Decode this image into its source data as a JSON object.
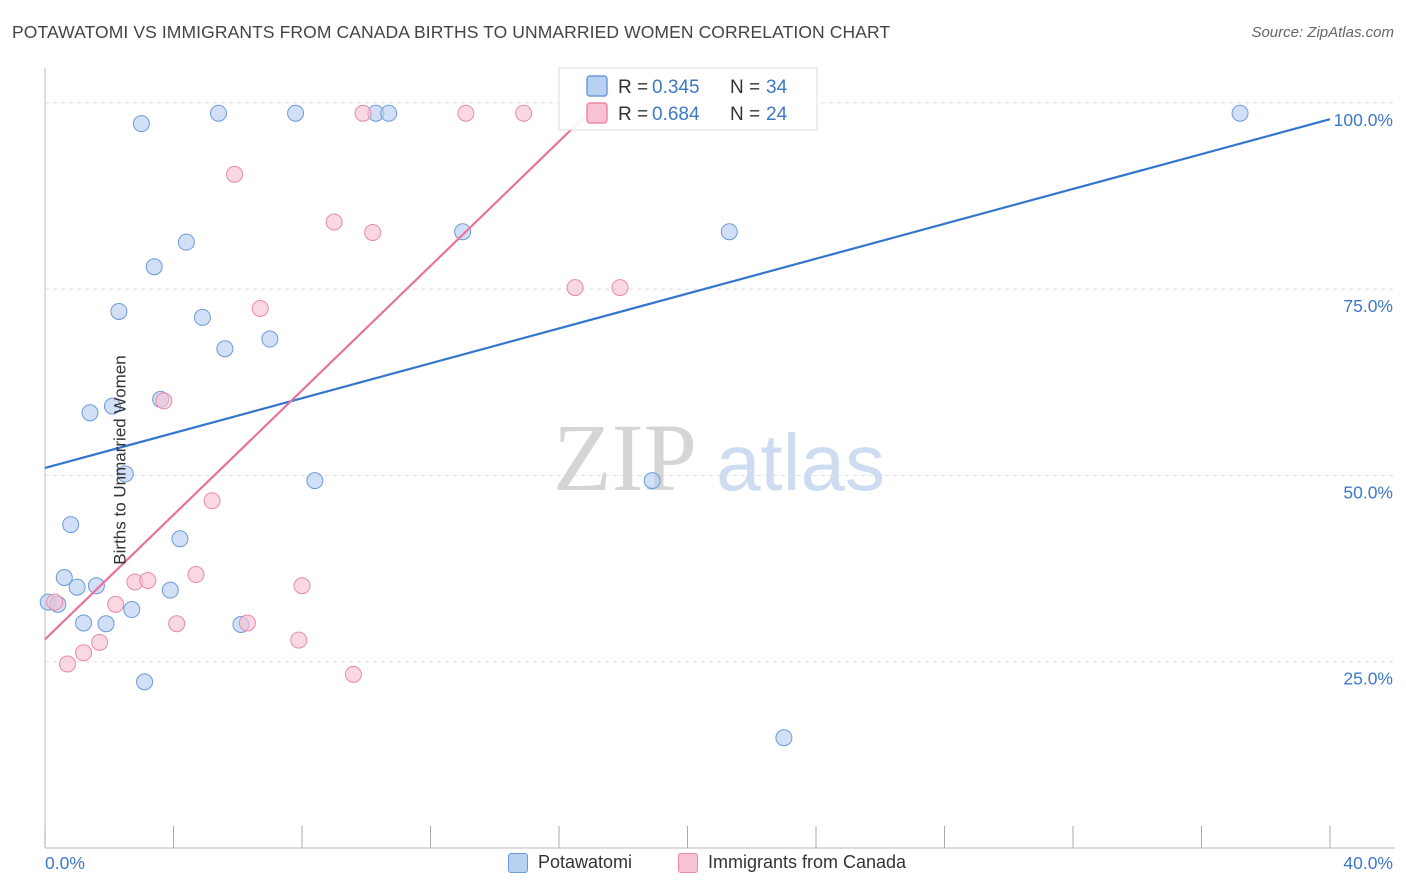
{
  "title": "POTAWATOMI VS IMMIGRANTS FROM CANADA BIRTHS TO UNMARRIED WOMEN CORRELATION CHART",
  "source": "Source: ZipAtlas.com",
  "watermark": {
    "zip": "ZIP",
    "atlas": "atlas"
  },
  "colors": {
    "blue_fill": "#b8d0f2",
    "blue_stroke": "#6c9ad8",
    "blue_line": "#3376cc",
    "pink_fill": "#f7c3d3",
    "pink_stroke": "#e98aa8",
    "pink_line": "#e8739a",
    "axis_text": "#3d78c8",
    "grid": "#dddddd"
  },
  "legend": {
    "rows": [
      {
        "r_label": "R =",
        "r_value": "0.345",
        "n_label": "N =",
        "n_value": "34"
      },
      {
        "r_label": "R =",
        "r_value": "0.684",
        "n_label": "N =",
        "n_value": "24"
      }
    ]
  },
  "chart_data": {
    "type": "scatter",
    "title": "POTAWATOMI VS IMMIGRANTS FROM CANADA BIRTHS TO UNMARRIED WOMEN CORRELATION CHART",
    "xlabel": "",
    "ylabel": "Births to Unmarried Women",
    "xlim": [
      0,
      40
    ],
    "ylim": [
      0,
      104
    ],
    "x_tick_labels": [
      "0.0%",
      "40.0%"
    ],
    "y_ticks": [
      25,
      50,
      75,
      100
    ],
    "y_tick_labels": [
      "25.0%",
      "50.0%",
      "75.0%",
      "100.0%"
    ],
    "grid": true,
    "legend_position": "top-center",
    "series": [
      {
        "name": "Potawatomi",
        "r": 0.345,
        "n": 34,
        "trend": {
          "x": [
            0,
            40
          ],
          "y": [
            51.0,
            97.8
          ]
        },
        "points": [
          {
            "x": 0.1,
            "y": 33.0
          },
          {
            "x": 0.4,
            "y": 32.7
          },
          {
            "x": 0.6,
            "y": 36.3
          },
          {
            "x": 0.8,
            "y": 43.4
          },
          {
            "x": 1.0,
            "y": 35.0
          },
          {
            "x": 1.2,
            "y": 30.2
          },
          {
            "x": 1.4,
            "y": 58.4
          },
          {
            "x": 1.6,
            "y": 35.2
          },
          {
            "x": 1.9,
            "y": 30.1
          },
          {
            "x": 2.1,
            "y": 59.3
          },
          {
            "x": 2.3,
            "y": 72.0
          },
          {
            "x": 2.5,
            "y": 50.2
          },
          {
            "x": 2.7,
            "y": 32.0
          },
          {
            "x": 3.0,
            "y": 97.2
          },
          {
            "x": 3.1,
            "y": 22.3
          },
          {
            "x": 3.4,
            "y": 78.0
          },
          {
            "x": 3.6,
            "y": 60.2
          },
          {
            "x": 3.9,
            "y": 34.6
          },
          {
            "x": 4.2,
            "y": 41.5
          },
          {
            "x": 4.4,
            "y": 81.3
          },
          {
            "x": 4.9,
            "y": 71.2
          },
          {
            "x": 5.4,
            "y": 98.6
          },
          {
            "x": 5.6,
            "y": 67.0
          },
          {
            "x": 6.1,
            "y": 30.0
          },
          {
            "x": 7.0,
            "y": 68.3
          },
          {
            "x": 7.8,
            "y": 98.6
          },
          {
            "x": 8.4,
            "y": 49.3
          },
          {
            "x": 10.3,
            "y": 98.6
          },
          {
            "x": 10.7,
            "y": 98.6
          },
          {
            "x": 13.0,
            "y": 82.7
          },
          {
            "x": 18.9,
            "y": 49.3
          },
          {
            "x": 21.3,
            "y": 82.7
          },
          {
            "x": 23.0,
            "y": 14.8
          },
          {
            "x": 37.2,
            "y": 98.6
          }
        ]
      },
      {
        "name": "Immigrants from Canada",
        "r": 0.684,
        "n": 24,
        "trend": {
          "x": [
            0,
            17.6
          ],
          "y": [
            28.0,
            101.5
          ]
        },
        "points": [
          {
            "x": 0.3,
            "y": 33.0
          },
          {
            "x": 0.7,
            "y": 24.7
          },
          {
            "x": 1.2,
            "y": 26.2
          },
          {
            "x": 1.7,
            "y": 27.6
          },
          {
            "x": 2.2,
            "y": 32.7
          },
          {
            "x": 2.8,
            "y": 35.7
          },
          {
            "x": 3.2,
            "y": 35.9
          },
          {
            "x": 3.7,
            "y": 60.0
          },
          {
            "x": 4.1,
            "y": 30.1
          },
          {
            "x": 4.7,
            "y": 36.7
          },
          {
            "x": 5.2,
            "y": 46.6
          },
          {
            "x": 5.9,
            "y": 90.4
          },
          {
            "x": 6.3,
            "y": 30.2
          },
          {
            "x": 6.7,
            "y": 72.4
          },
          {
            "x": 8.0,
            "y": 35.2
          },
          {
            "x": 7.9,
            "y": 27.9
          },
          {
            "x": 9.0,
            "y": 84.0
          },
          {
            "x": 9.6,
            "y": 23.3
          },
          {
            "x": 9.9,
            "y": 98.6
          },
          {
            "x": 10.2,
            "y": 82.6
          },
          {
            "x": 13.1,
            "y": 98.6
          },
          {
            "x": 14.9,
            "y": 98.6
          },
          {
            "x": 16.5,
            "y": 75.2
          },
          {
            "x": 17.9,
            "y": 75.2
          }
        ]
      }
    ]
  }
}
